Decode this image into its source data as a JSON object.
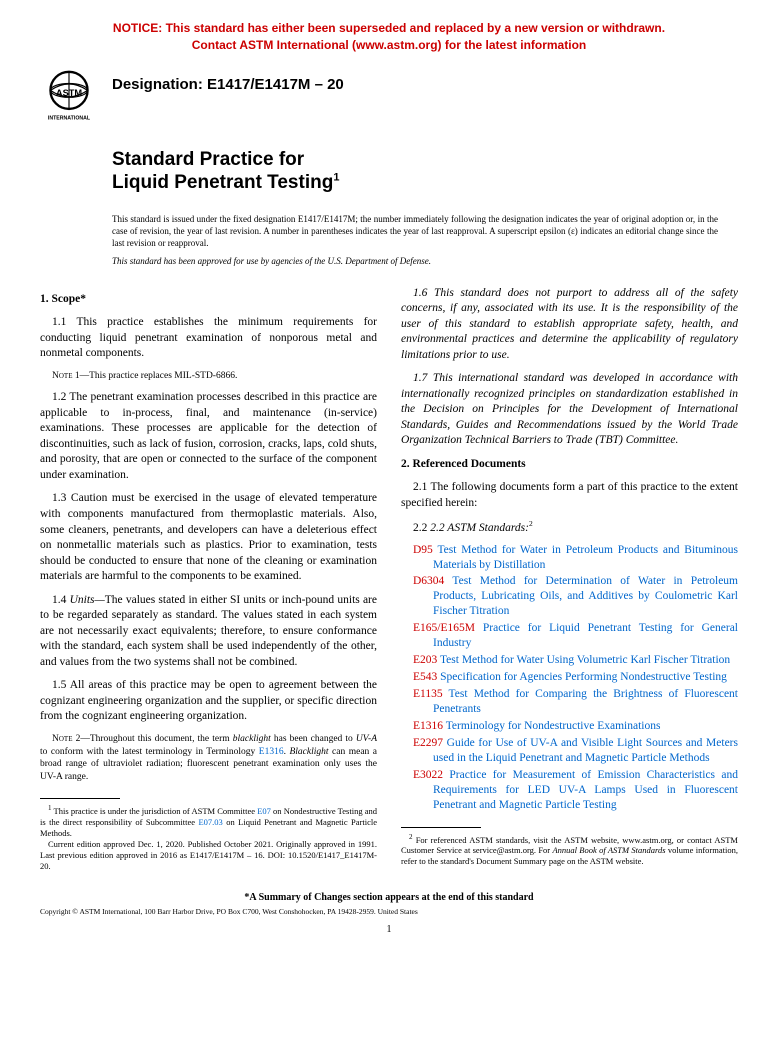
{
  "notice": {
    "line1": "NOTICE: This standard has either been superseded and replaced by a new version or withdrawn.",
    "line2": "Contact ASTM International (www.astm.org) for the latest information"
  },
  "designation": "Designation: E1417/E1417M – 20",
  "title": {
    "line1": "Standard Practice for",
    "line2": "Liquid Penetrant Testing",
    "sup": "1"
  },
  "issuance": "This standard is issued under the fixed designation E1417/E1417M; the number immediately following the designation indicates the year of original adoption or, in the case of revision, the year of last revision. A number in parentheses indicates the year of last reapproval. A superscript epsilon (ε) indicates an editorial change since the last revision or reapproval.",
  "dod": "This standard has been approved for use by agencies of the U.S. Department of Defense.",
  "scope": {
    "head": "1. Scope*",
    "p11": "1.1 This practice establishes the minimum requirements for conducting liquid penetrant examination of nonporous metal and nonmetal components.",
    "note1": "1—This practice replaces MIL-STD-6866.",
    "p12": "1.2 The penetrant examination processes described in this practice are applicable to in-process, final, and maintenance (in-service) examinations. These processes are applicable for the detection of discontinuities, such as lack of fusion, corrosion, cracks, laps, cold shuts, and porosity, that are open or connected to the surface of the component under examination.",
    "p13": "1.3 Caution must be exercised in the usage of elevated temperature with components manufactured from thermoplastic materials. Also, some cleaners, penetrants, and developers can have a deleterious effect on nonmetallic materials such as plastics. Prior to examination, tests should be conducted to ensure that none of the cleaning or examination materials are harmful to the components to be examined.",
    "p14_a": "1.4 ",
    "p14_units": "Units—",
    "p14_b": "The values stated in either SI units or inch-pound units are to be regarded separately as standard. The values stated in each system are not necessarily exact equivalents; therefore, to ensure conformance with the standard, each system shall be used independently of the other, and values from the two systems shall not be combined.",
    "p15": "1.5 All areas of this practice may be open to agreement between the cognizant engineering organization and the supplier, or specific direction from the cognizant engineering organization.",
    "note2_a": "2—Throughout this document, the term ",
    "note2_b": " has been changed to ",
    "note2_c": " to conform with the latest terminology in Terminology ",
    "note2_d": ". ",
    "note2_e": " can mean a broad range of ultraviolet radiation; fluorescent penetrant examination only uses the UV-A range.",
    "p16": "1.6 This standard does not purport to address all of the safety concerns, if any, associated with its use. It is the responsibility of the user of this standard to establish appropriate safety, health, and environmental practices and determine the applicability of regulatory limitations prior to use.",
    "p17": "1.7 This international standard was developed in accordance with internationally recognized principles on standardization established in the Decision on Principles for the Development of International Standards, Guides and Recommendations issued by the World Trade Organization Technical Barriers to Trade (TBT) Committee."
  },
  "refdocs": {
    "head": "2. Referenced Documents",
    "p21": "2.1 The following documents form a part of this practice to the extent specified herein:",
    "p22": "2.2 ASTM Standards:",
    "items": [
      {
        "code": "D95",
        "title": "Test Method for Water in Petroleum Products and Bituminous Materials by Distillation"
      },
      {
        "code": "D6304",
        "title": "Test Method for Determination of Water in Petroleum Products, Lubricating Oils, and Additives by Coulometric Karl Fischer Titration"
      },
      {
        "code": "E165/E165M",
        "title": "Practice for Liquid Penetrant Testing for General Industry"
      },
      {
        "code": "E203",
        "title": "Test Method for Water Using Volumetric Karl Fischer Titration"
      },
      {
        "code": "E543",
        "title": "Specification for Agencies Performing Nondestructive Testing"
      },
      {
        "code": "E1135",
        "title": "Test Method for Comparing the Brightness of Fluorescent Penetrants"
      },
      {
        "code": "E1316",
        "title": "Terminology for Nondestructive Examinations"
      },
      {
        "code": "E2297",
        "title": "Guide for Use of UV-A and Visible Light Sources and Meters used in the Liquid Penetrant and Magnetic Particle Methods"
      },
      {
        "code": "E3022",
        "title": "Practice for Measurement of Emission Characteristics and Requirements for LED UV-A Lamps Used in Fluorescent Penetrant and Magnetic Particle Testing"
      }
    ]
  },
  "footnotes": {
    "f1_a": " This practice is under the jurisdiction of ASTM Committee ",
    "f1_link1": "E07",
    "f1_b": " on Nondestructive Testing and is the direct responsibility of Subcommittee ",
    "f1_link2": "E07.03",
    "f1_c": " on Liquid Penetrant and Magnetic Particle Methods.",
    "f1_d": "Current edition approved Dec. 1, 2020. Published October 2021. Originally approved in 1991. Last previous edition approved in 2016 as E1417/E1417M – 16. DOI: 10.1520/E1417_E1417M-20.",
    "f2_a": " For referenced ASTM standards, visit the ASTM website, www.astm.org, or contact ASTM Customer Service at service@astm.org. For ",
    "f2_i": "Annual Book of ASTM Standards",
    "f2_b": " volume information, refer to the standard's Document Summary page on the ASTM website."
  },
  "summary": "*A Summary of Changes section appears at the end of this standard",
  "copyright": "Copyright © ASTM International, 100 Barr Harbor Drive, PO Box C700, West Conshohocken, PA 19428-2959. United States",
  "page_num": "1",
  "logo_text": "INTERNATIONAL"
}
